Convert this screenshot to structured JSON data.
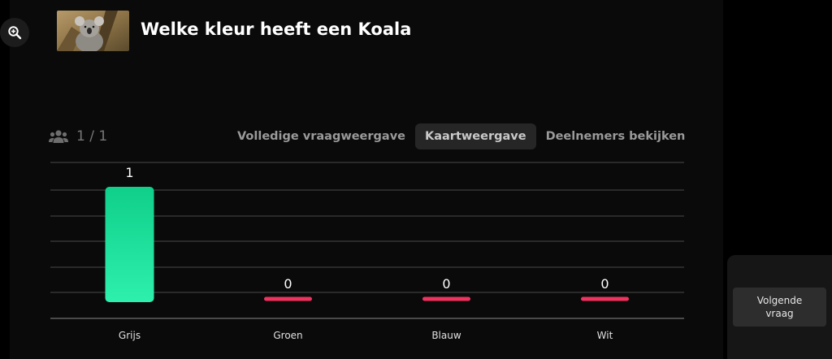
{
  "question": {
    "title": "Welke kleur heeft een Koala",
    "image_icon": "koala-photo"
  },
  "toolbar": {
    "zoom_icon": "zoom-in-icon"
  },
  "participants": {
    "icon": "users-icon",
    "count": "1 / 1"
  },
  "tabs": [
    {
      "label": "Volledige vraagweergave",
      "active": false
    },
    {
      "label": "Kaartweergave",
      "active": true
    },
    {
      "label": "Deelnemers bekijken",
      "active": false
    }
  ],
  "colors": {
    "bar_positive_top": "#0fcf8a",
    "bar_positive_bottom": "#2ef0ad",
    "bar_zero": "#f0325f",
    "grid": "#2a2a2a",
    "axis": "#4a4a4a"
  },
  "chart_data": {
    "type": "bar",
    "categories": [
      "Grijs",
      "Groen",
      "Blauw",
      "Wit"
    ],
    "values": [
      1,
      0,
      0,
      0
    ],
    "data_labels": [
      "1",
      "0",
      "0",
      "0"
    ],
    "title": "",
    "xlabel": "",
    "ylabel": "",
    "ylim": [
      0,
      1
    ],
    "grid": true,
    "legend": "none"
  },
  "actions": {
    "next_label_line1": "Volgende",
    "next_label_line2": "vraag"
  }
}
